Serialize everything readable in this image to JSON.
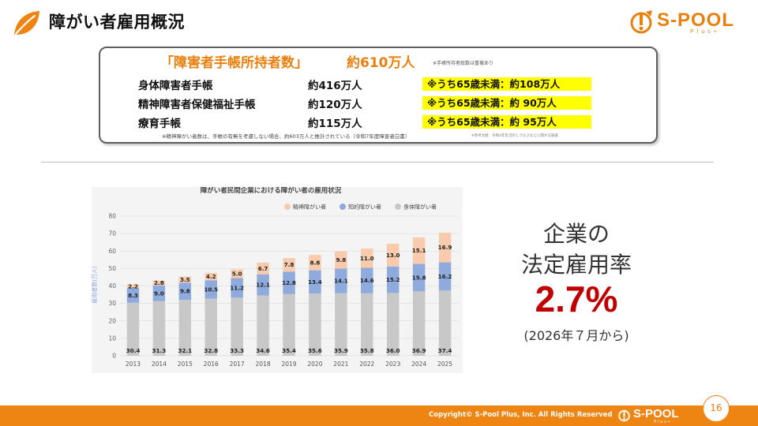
{
  "header": {
    "title": "障がい者雇用概況",
    "logo_name": "S-POOL",
    "logo_sub": "Plus+"
  },
  "handbook": {
    "heading": "「障害者手帳所持者数」",
    "total": "約610万人",
    "total_note": "※手帳所持者総数は重複あり",
    "rows": [
      {
        "label": "身体障害者手帳",
        "value": "約416万人",
        "highlight": "※うち65歳未満：約108万人"
      },
      {
        "label": "精神障害者保健福祉手帳",
        "value": "約120万人",
        "highlight": "※うち65歳未満：約 90万人"
      },
      {
        "label": "療育手帳",
        "value": "約115万人",
        "highlight": "※うち65歳未満：約 95万人"
      }
    ],
    "footnote": "※精神障がい者数は、手帳の有無を考慮しない場合、約603万人と推計されている（令和7年度障害者白書）",
    "source": "※参考文献　令和4年生活のしづらさなどに関する調査"
  },
  "chart_data": {
    "type": "bar",
    "stacked": true,
    "title": "障がい者民間企業における障がい者の雇用状況",
    "ylabel": "雇用者数(万人)",
    "xlabel": "",
    "ylim": [
      0,
      80
    ],
    "yticks": [
      0,
      10,
      20,
      30,
      40,
      50,
      60,
      70,
      80
    ],
    "grid": true,
    "legend_position": "top-right",
    "categories": [
      "2013",
      "2014",
      "2015",
      "2016",
      "2017",
      "2018",
      "2019",
      "2020",
      "2021",
      "2022",
      "2023",
      "2024",
      "2025"
    ],
    "series": [
      {
        "name": "身体障がい者",
        "color": "#c8c8c8",
        "values": [
          30.4,
          31.3,
          32.1,
          32.8,
          33.3,
          34.6,
          35.4,
          35.6,
          35.9,
          35.8,
          36.0,
          36.9,
          37.4
        ]
      },
      {
        "name": "知的障がい者",
        "color": "#8faadc",
        "values": [
          8.3,
          9.0,
          9.8,
          10.5,
          11.2,
          12.1,
          12.8,
          13.4,
          14.1,
          14.6,
          15.2,
          15.8,
          16.2
        ]
      },
      {
        "name": "精神障がい者",
        "color": "#f8cbad",
        "values": [
          2.2,
          2.8,
          3.5,
          4.2,
          5.0,
          6.7,
          7.8,
          8.8,
          9.8,
          11.0,
          13.0,
          15.1,
          16.9
        ]
      }
    ],
    "legend_order": [
      "精神障がい者",
      "知的障がい者",
      "身体障がい者"
    ]
  },
  "rate": {
    "heading_line1": "企業の",
    "heading_line2": "法定雇用率",
    "value": "2.7%",
    "note": "(2026年７月から)"
  },
  "footer": {
    "copyright": "Copyright© S-Pool Plus, Inc. All Rights Reserved",
    "logo_name": "S-POOL",
    "logo_sub": "Plus+",
    "page_number": "16"
  },
  "colors": {
    "accent": "#ee8411",
    "rate": "#c00000",
    "highlight": "#ffff00"
  }
}
